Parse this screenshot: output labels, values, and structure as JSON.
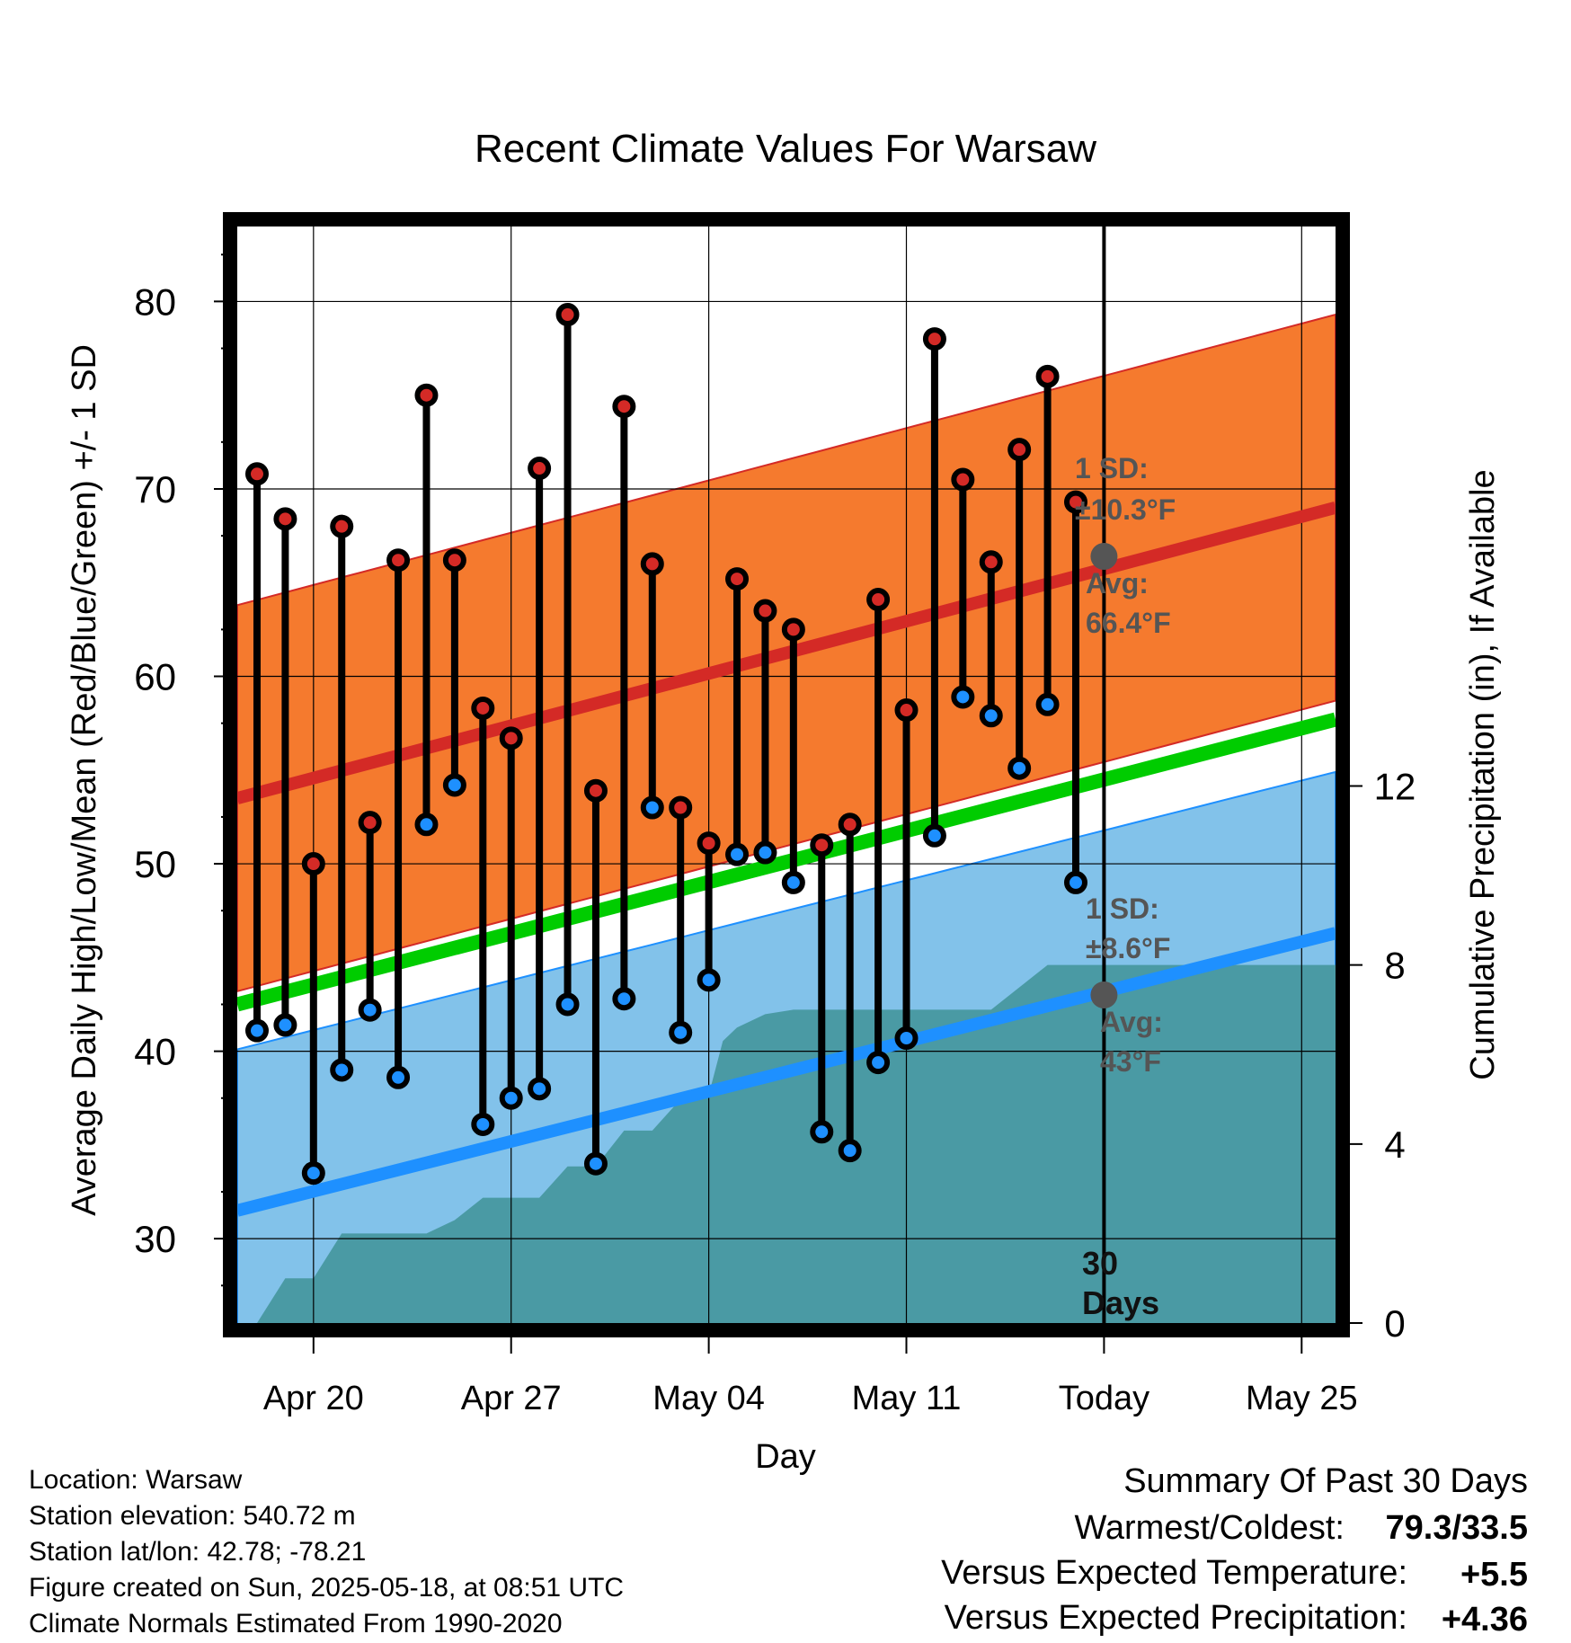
{
  "chart_data": {
    "type": "line",
    "title": "Recent Climate Values For Warsaw",
    "xlabel": "Day",
    "ylabel": "Average Daily High/Low/Mean (Red/Blue/Green) +/- 1 SD",
    "y2label": "Cumulative Precipitation (in), If Available",
    "x_tick_labels": [
      "Apr 20",
      "Apr 27",
      "May 04",
      "May 11",
      "Today",
      "May 25"
    ],
    "x_ticks_day": [
      2,
      9,
      16,
      23,
      30,
      37
    ],
    "xlim_day": [
      -0.7,
      38.2
    ],
    "ylim": [
      25.5,
      84
    ],
    "y_ticks": [
      30,
      40,
      50,
      60,
      70,
      80
    ],
    "y2lim": [
      0,
      24.5
    ],
    "y2_ticks": [
      0,
      4,
      8,
      12
    ],
    "today_day": 30,
    "grid": true,
    "normals": {
      "high_mean": {
        "start": 53.5,
        "end": 69.0,
        "color": "#d42a26"
      },
      "high_sd": 10.3,
      "low_mean": {
        "start": 31.5,
        "end": 46.3,
        "color": "#1e90ff"
      },
      "low_sd": 8.6,
      "mean": {
        "start": 42.5,
        "end": 57.7,
        "color": "#00cc00"
      },
      "high_band_color": "#f57a2e",
      "low_band_color": "#82c2ea"
    },
    "daily": {
      "days": [
        0,
        1,
        2,
        3,
        4,
        5,
        6,
        7,
        8,
        9,
        10,
        11,
        12,
        13,
        14,
        15,
        16,
        17,
        18,
        19,
        20,
        21,
        22,
        23,
        24,
        25,
        26,
        27,
        28,
        29
      ],
      "highs": [
        70.8,
        68.4,
        50.0,
        68.0,
        52.2,
        66.2,
        75.0,
        66.2,
        58.3,
        56.7,
        71.1,
        79.3,
        53.9,
        74.4,
        66.0,
        53.0,
        51.1,
        65.2,
        63.5,
        62.5,
        51.0,
        52.1,
        64.1,
        58.2,
        78.0,
        70.5,
        66.1,
        72.1,
        76.0,
        69.3
      ],
      "lows": [
        41.1,
        41.4,
        33.5,
        39.0,
        42.2,
        38.6,
        52.1,
        54.2,
        36.1,
        37.5,
        38.0,
        42.5,
        34.0,
        42.8,
        53.0,
        41.0,
        43.8,
        50.5,
        50.6,
        49.0,
        35.7,
        34.7,
        39.4,
        40.7,
        51.5,
        58.9,
        57.9,
        55.1,
        58.5,
        49.0
      ],
      "high_color": "#d42a26",
      "low_color": "#1e90ff"
    },
    "precip": {
      "color": "#4a9aa4",
      "days": [
        -0.7,
        0,
        1,
        2,
        3,
        4,
        5,
        6,
        7,
        8,
        9,
        10,
        11,
        12,
        13,
        14,
        15,
        16,
        16.5,
        17,
        18,
        19,
        20,
        21,
        22,
        23,
        24,
        25,
        26,
        27,
        28,
        29,
        30,
        38.2
      ],
      "values": [
        0,
        0,
        1.0,
        1.0,
        2.0,
        2.0,
        2.0,
        2.0,
        2.3,
        2.8,
        2.8,
        2.8,
        3.5,
        3.5,
        4.3,
        4.3,
        5.0,
        5.1,
        6.3,
        6.6,
        6.9,
        7.0,
        7.0,
        7.0,
        7.0,
        7.0,
        7.0,
        7.0,
        7.0,
        7.5,
        8.0,
        8.0,
        8.0,
        8.0
      ]
    },
    "annotations": {
      "high_sd_label_1": "1 SD:",
      "high_sd_label_2": "±10.3°F",
      "high_avg_label_1": "Avg:",
      "high_avg_label_2": "66.4°F",
      "high_avg_value": 66.4,
      "low_sd_label_1": "1 SD:",
      "low_sd_label_2": "±8.6°F",
      "low_avg_label_1": "Avg:",
      "low_avg_label_2": "43°F",
      "low_avg_value": 43,
      "days_label_1": "30",
      "days_label_2": "Days"
    }
  },
  "footer": {
    "location": "Location: Warsaw",
    "elevation": "Station elevation: 540.72 m",
    "latlon": "Station lat/lon: 42.78; -78.21",
    "created": "Figure created on Sun, 2025-05-18, at 08:51 UTC",
    "normals": "Climate Normals Estimated From 1990-2020"
  },
  "summary": {
    "heading": "Summary Of Past 30 Days",
    "warm_cold_label": "Warmest/Coldest:",
    "warm_cold_value": "79.3/33.5",
    "temp_label": "Versus Expected Temperature:",
    "temp_value": "+5.5",
    "temp_color": "#d42a26",
    "precip_label": "Versus Expected Precipitation:",
    "precip_value": "+4.36",
    "precip_color": "#22bb22"
  }
}
